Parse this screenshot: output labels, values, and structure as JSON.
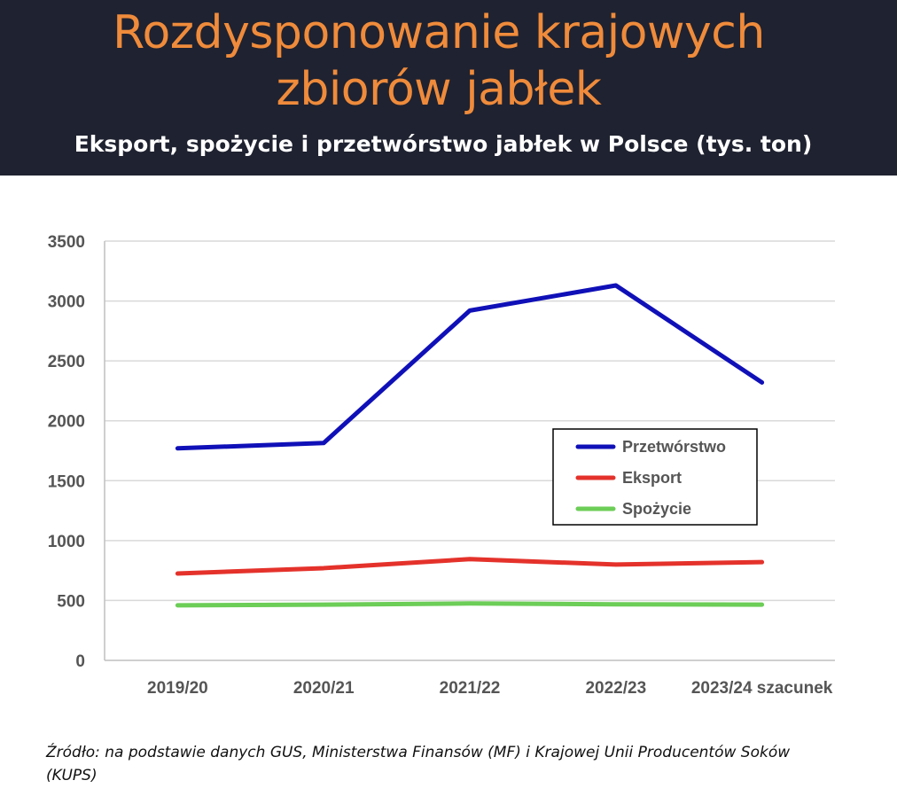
{
  "header": {
    "title_line1": "Rozdysponowanie krajowych",
    "title_line2": "zbiorów jabłek",
    "subtitle": "Eksport, spożycie i przetwórstwo jabłek w Polsce (tys. ton)"
  },
  "chart_data": {
    "type": "line",
    "title": "Rozdysponowanie krajowych zbiorów jabłek",
    "subtitle": "Eksport, spożycie i przetwórstwo jabłek w Polsce (tys. ton)",
    "categories": [
      "2019/20",
      "2020/21",
      "2021/22",
      "2022/23",
      "2023/24 szacunek"
    ],
    "yticks": [
      0,
      500,
      1000,
      1500,
      2000,
      2500,
      3000,
      3500
    ],
    "ylim": [
      0,
      3500
    ],
    "grid": true,
    "legend_position": "right",
    "series": [
      {
        "name": "Przetwórstwo",
        "color": "#1010b8",
        "values": [
          1770,
          1815,
          2920,
          3130,
          2320
        ]
      },
      {
        "name": "Eksport",
        "color": "#e4322b",
        "values": [
          725,
          770,
          845,
          800,
          820
        ]
      },
      {
        "name": "Spożycie",
        "color": "#6ccd57",
        "values": [
          460,
          465,
          475,
          468,
          465
        ]
      }
    ]
  },
  "source": "Źródło: na podstawie danych GUS, Ministerstwa Finansów (MF) i Krajowej Unii Producentów Soków (KUPS)"
}
